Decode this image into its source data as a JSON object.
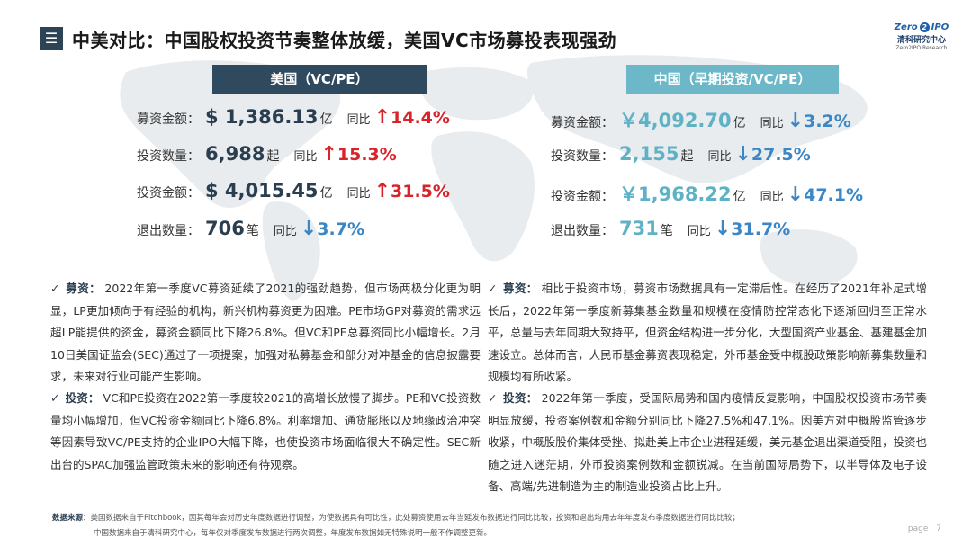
{
  "header": {
    "menu_icon": "menu-icon",
    "title": "中美对比：中国股权投资节奏整体放缓，美国VC市场募投表现强劲"
  },
  "logo": {
    "zero": "Zero",
    "two": "2",
    "ipo": "IPO",
    "cn": "清科研究中心",
    "en": "Zero2IPO Research"
  },
  "us": {
    "header": "美国（VC/PE）",
    "stats": [
      {
        "label": "募资金额：",
        "value": "$ 1,386.13",
        "unit": "亿",
        "compare": "同比",
        "arrow": "↑",
        "pct": "14.4%"
      },
      {
        "label": "投资数量：",
        "value": "6,988",
        "unit": "起",
        "compare": "同比",
        "arrow": "↑",
        "pct": "15.3%"
      },
      {
        "label": "投资金额：",
        "value": "$ 4,015.45",
        "unit": "亿",
        "compare": "同比",
        "arrow": "↑",
        "pct": "31.5%"
      },
      {
        "label": "退出数量：",
        "value": "706",
        "unit": "笔",
        "compare": "同比",
        "arrow": "↓",
        "pct": "3.7%"
      }
    ],
    "paragraphs": [
      {
        "check": "✓",
        "keyword": "募资：",
        "text": "2022年第一季度VC募资延续了2021的强劲趋势，但市场两极分化更为明显，LP更加倾向于有经验的机构，新兴机构募资更为困难。PE市场GP对募资的需求远超LP能提供的资金，募资金额同比下降26.8%。但VC和PE总募资同比小幅增长。2月10日美国证监会(SEC)通过了一项提案，加强对私募基金和部分对冲基金的信息披露要求，未来对行业可能产生影响。"
      },
      {
        "check": "✓",
        "keyword": "投资：",
        "text": "VC和PE投资在2022第一季度较2021的高增长放慢了脚步。PE和VC投资数量均小幅增加，但VC投资金额同比下降6.8%。利率增加、通货膨胀以及地缘政治冲突等因素导致VC/PE支持的企业IPO大幅下降，也使投资市场面临很大不确定性。SEC新出台的SPAC加强监管政策未来的影响还有待观察。"
      }
    ]
  },
  "cn": {
    "header": "中国（早期投资/VC/PE）",
    "stats": [
      {
        "label": "募资金额：",
        "value": "￥4,092.70",
        "unit": "亿",
        "compare": "同比",
        "arrow": "↓",
        "pct": "3.2%"
      },
      {
        "label": "投资数量：",
        "value": "2,155",
        "unit": "起",
        "compare": "同比",
        "arrow": "↓",
        "pct": "27.5%"
      },
      {
        "label": "投资金额：",
        "value": "￥1,968.22",
        "unit": "亿",
        "compare": "同比",
        "arrow": "↓",
        "pct": "47.1%"
      },
      {
        "label": "退出数量：",
        "value": "731",
        "unit": "笔",
        "compare": "同比",
        "arrow": "↓",
        "pct": "31.7%"
      }
    ],
    "paragraphs": [
      {
        "check": "✓",
        "keyword": "募资：",
        "text": "相比于投资市场，募资市场数据具有一定滞后性。在经历了2021年补足式增长后，2022年第一季度新募集基金数量和规模在疫情防控常态化下逐渐回归至正常水平，总量与去年同期大致持平，但资金结构进一步分化，大型国资产业基金、基建基金加速设立。总体而言，人民币基金募资表现稳定，外币基金受中概股政策影响新募集数量和规模均有所收紧。"
      },
      {
        "check": "✓",
        "keyword": "投资：",
        "text": "2022年第一季度，受国际局势和国内疫情反复影响，中国股权投资市场节奏明显放缓，投资案例数和金额分别同比下降27.5%和47.1%。因美方对中概股监管逐步收紧，中概股股价集体受挫、拟赴美上市企业进程延缓，美元基金退出渠道受阻，投资也随之进入迷茫期，外币投资案例数和金额锐减。在当前国际局势下，以半导体及电子设备、高端/先进制造为主的制造业投资占比上升。"
      }
    ]
  },
  "source": {
    "label": "数据来源：",
    "line1": "美国数据来自于Pitchbook，因其每年会对历史年度数据进行调整，为使数据具有可比性，此处募资使用去年当延发布数据进行同比比较，投资和退出均用去年年度发布季度数据进行同比比较；",
    "line2": "中国数据来自于清科研究中心，每年仅对季度发布数据进行两次调整，年度发布数据如无特殊说明一般不作调整更新。"
  },
  "page": {
    "label": "page",
    "number": "7"
  },
  "colors": {
    "us_header": "#2f4a5e",
    "cn_header": "#6cb8c9",
    "up": "#d8232a",
    "down": "#3b86c4"
  }
}
